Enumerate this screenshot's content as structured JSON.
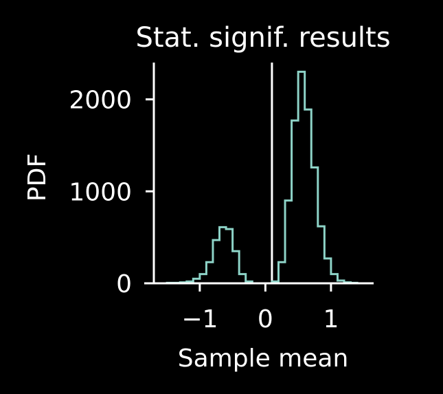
{
  "chart_data": {
    "type": "histogram",
    "title": "Stat. signif. results",
    "xlabel": "Sample mean",
    "ylabel": "PDF",
    "xlim": [
      -1.7,
      1.65
    ],
    "ylim": [
      0,
      2400
    ],
    "x_ticks": [
      -1,
      0,
      1
    ],
    "x_tick_labels": [
      "−1",
      "0",
      "1"
    ],
    "y_ticks": [
      0,
      1000,
      2000
    ],
    "y_tick_labels": [
      "0",
      "1000",
      "2000"
    ],
    "bin_edges": [
      -1.5,
      -1.4,
      -1.3,
      -1.2,
      -1.1,
      -1.0,
      -0.9,
      -0.8,
      -0.7,
      -0.6,
      -0.5,
      -0.4,
      -0.3,
      -0.2,
      -0.1,
      0.0,
      0.1,
      0.2,
      0.3,
      0.4,
      0.5,
      0.6,
      0.7,
      0.8,
      0.9,
      1.0,
      1.1,
      1.2,
      1.3,
      1.4
    ],
    "counts": [
      5,
      5,
      10,
      20,
      50,
      100,
      230,
      470,
      610,
      590,
      350,
      100,
      20,
      0,
      0,
      0,
      20,
      230,
      900,
      1770,
      2300,
      1890,
      1260,
      620,
      270,
      100,
      30,
      10,
      5
    ],
    "vline_x": 0.1,
    "colors": {
      "background": "#000000",
      "foreground": "#ffffff",
      "histogram": "#8dd3c7",
      "vline": "#ffffff"
    },
    "grid": false,
    "legend": false
  }
}
